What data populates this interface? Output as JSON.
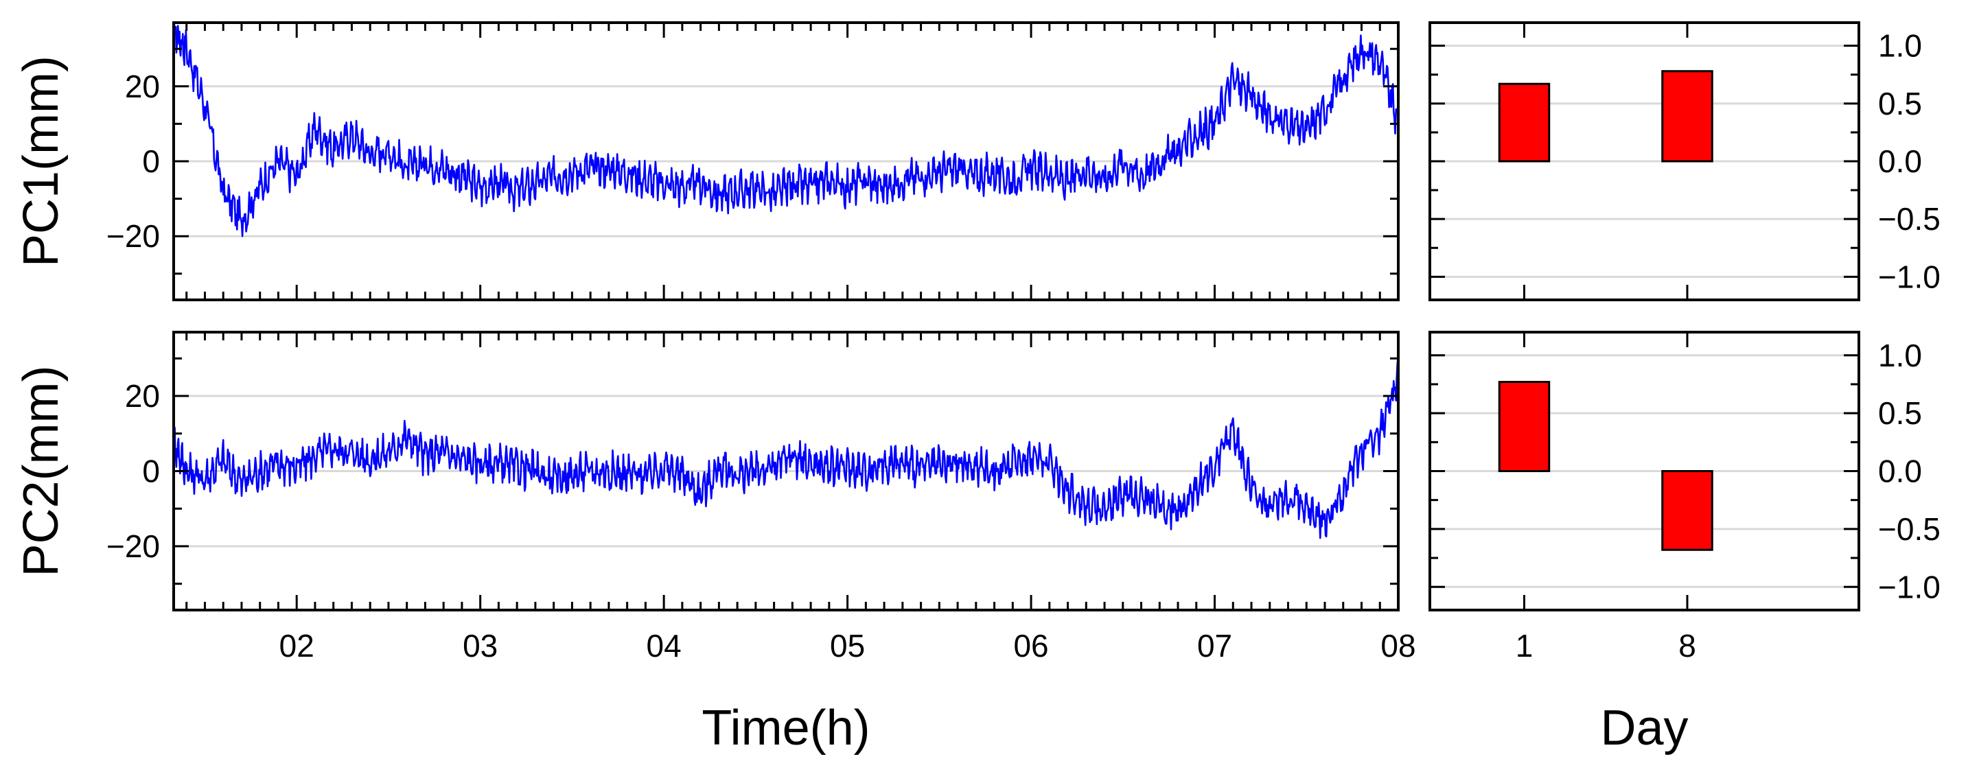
{
  "chart_data": [
    {
      "id": "pc1-time",
      "type": "line",
      "ylabel": "PC1(mm)",
      "xlabel": "",
      "xlim": [
        1.33,
        8.0
      ],
      "ylim": [
        -37,
        37
      ],
      "x_ticks": [
        2,
        3,
        4,
        5,
        6,
        7,
        8
      ],
      "x_tick_labels": [
        "02",
        "03",
        "04",
        "05",
        "06",
        "07",
        "08"
      ],
      "y_ticks": [
        -20,
        0,
        20
      ],
      "y_tick_labels": [
        "−20",
        "0",
        "20"
      ],
      "grid": "horizontal",
      "series": [
        {
          "color": "#0000ff",
          "x": [
            1.33,
            1.4,
            1.5,
            1.6,
            1.7,
            1.8,
            1.9,
            2.0,
            2.1,
            2.2,
            2.3,
            2.4,
            2.5,
            2.6,
            2.7,
            2.8,
            2.9,
            3.0,
            3.1,
            3.2,
            3.3,
            3.4,
            3.5,
            3.6,
            3.7,
            3.8,
            3.9,
            4.0,
            4.1,
            4.2,
            4.3,
            4.4,
            4.5,
            4.6,
            4.7,
            4.8,
            4.9,
            5.0,
            5.1,
            5.2,
            5.3,
            5.4,
            5.5,
            5.6,
            5.7,
            5.8,
            5.9,
            6.0,
            6.1,
            6.2,
            6.3,
            6.4,
            6.5,
            6.6,
            6.7,
            6.8,
            6.9,
            7.0,
            7.1,
            7.2,
            7.3,
            7.4,
            7.5,
            7.6,
            7.7,
            7.8,
            7.9,
            8.0
          ],
          "y": [
            35,
            30,
            15,
            -8,
            -16,
            -7,
            0,
            -4,
            9,
            3,
            7,
            2,
            3,
            -2,
            0,
            -2,
            -4,
            -7,
            -6,
            -8,
            -6,
            -4,
            -3,
            -2,
            -2,
            -3,
            -5,
            -6,
            -7,
            -6,
            -9,
            -8,
            -7,
            -9,
            -6,
            -7,
            -5,
            -7,
            -5,
            -7,
            -5,
            -4,
            -3,
            -2,
            -4,
            -3,
            -5,
            -2,
            -3,
            -6,
            -2,
            -5,
            0,
            -4,
            0,
            3,
            7,
            10,
            22,
            17,
            12,
            10,
            8,
            14,
            22,
            30,
            27,
            10
          ]
        }
      ]
    },
    {
      "id": "pc2-time",
      "type": "line",
      "ylabel": "PC2(mm)",
      "xlabel": "Time(h)",
      "xlim": [
        1.33,
        8.0
      ],
      "ylim": [
        -37,
        37
      ],
      "x_ticks": [
        2,
        3,
        4,
        5,
        6,
        7,
        8
      ],
      "x_tick_labels": [
        "02",
        "03",
        "04",
        "05",
        "06",
        "07",
        "08"
      ],
      "y_ticks": [
        -20,
        0,
        20
      ],
      "y_tick_labels": [
        "−20",
        "0",
        "20"
      ],
      "grid": "horizontal",
      "series": [
        {
          "color": "#0000ff",
          "x": [
            1.33,
            1.4,
            1.5,
            1.6,
            1.7,
            1.8,
            1.9,
            2.0,
            2.1,
            2.2,
            2.3,
            2.4,
            2.5,
            2.6,
            2.7,
            2.8,
            2.9,
            3.0,
            3.1,
            3.2,
            3.3,
            3.4,
            3.5,
            3.6,
            3.7,
            3.8,
            3.9,
            4.0,
            4.1,
            4.2,
            4.3,
            4.4,
            4.5,
            4.6,
            4.7,
            4.8,
            4.9,
            5.0,
            5.1,
            5.2,
            5.3,
            5.4,
            5.5,
            5.6,
            5.7,
            5.8,
            5.9,
            6.0,
            6.1,
            6.2,
            6.3,
            6.4,
            6.5,
            6.6,
            6.7,
            6.8,
            6.9,
            7.0,
            7.1,
            7.2,
            7.3,
            7.4,
            7.5,
            7.6,
            7.7,
            7.8,
            7.9,
            8.0
          ],
          "y": [
            8,
            0,
            -2,
            3,
            -3,
            0,
            2,
            1,
            4,
            6,
            5,
            3,
            5,
            9,
            4,
            5,
            3,
            2,
            2,
            1,
            0,
            -2,
            -1,
            0,
            0,
            -1,
            -1,
            1,
            -1,
            -6,
            1,
            -1,
            0,
            1,
            4,
            2,
            1,
            1,
            0,
            2,
            2,
            1,
            1,
            2,
            1,
            0,
            2,
            4,
            2,
            -5,
            -9,
            -10,
            -6,
            -7,
            -9,
            -11,
            -4,
            1,
            11,
            -4,
            -11,
            -6,
            -9,
            -13,
            -6,
            6,
            10,
            24
          ]
        }
      ]
    },
    {
      "id": "pc1-day",
      "type": "bar",
      "xlabel": "",
      "ylim": [
        -1.2,
        1.2
      ],
      "categories": [
        "1",
        "8"
      ],
      "values": [
        0.67,
        0.78
      ],
      "y_ticks": [
        -1.0,
        -0.5,
        0.0,
        0.5,
        1.0
      ],
      "y_tick_labels": [
        "−1.0",
        "−0.5",
        "0.0",
        "0.5",
        "1.0"
      ],
      "bar_color": "#ff0000",
      "grid": "horizontal"
    },
    {
      "id": "pc2-day",
      "type": "bar",
      "xlabel": "Day",
      "ylim": [
        -1.2,
        1.2
      ],
      "categories": [
        "1",
        "8"
      ],
      "values": [
        0.77,
        -0.68
      ],
      "y_ticks": [
        -1.0,
        -0.5,
        0.0,
        0.5,
        1.0
      ],
      "y_tick_labels": [
        "−1.0",
        "−0.5",
        "0.0",
        "0.5",
        "1.0"
      ],
      "bar_color": "#ff0000",
      "grid": "horizontal"
    }
  ]
}
